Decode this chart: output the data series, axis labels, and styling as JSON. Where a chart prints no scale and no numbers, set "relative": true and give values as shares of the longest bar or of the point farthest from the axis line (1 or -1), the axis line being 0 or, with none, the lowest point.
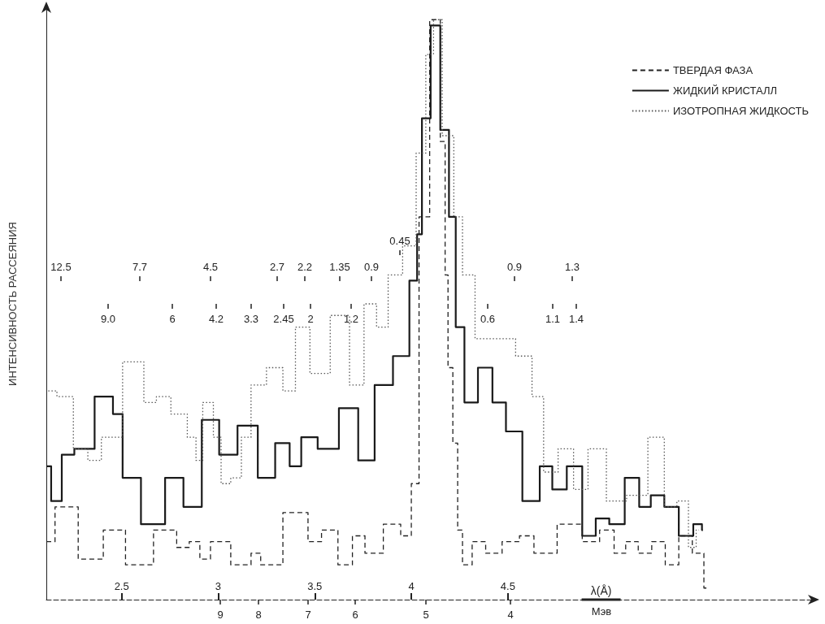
{
  "chart_data": {
    "type": "step",
    "relative": true,
    "ylabel": "ИНТЕНСИВНОСТЬ РАССЕЯНИЯ",
    "xlabel": "λ(Å)",
    "xlim": [
      2.11,
      6.1
    ],
    "xticks": [
      2.5,
      3,
      3.5,
      4,
      4.5
    ],
    "legend": "top right",
    "grid": false,
    "marker": "none",
    "series": [
      {
        "name": "ТВЕРДАЯ ФАЗА",
        "color": "#222222",
        "line_style": "dashed",
        "x": [
          2.11,
          2.2,
          2.35,
          2.46,
          2.58,
          2.75,
          2.82,
          2.88,
          2.93,
          2.99,
          3.14,
          3.2,
          3.24,
          3.43,
          3.5,
          3.57,
          3.67,
          3.72,
          3.8,
          3.91,
          3.98,
          4.02,
          4.06,
          4.13,
          4.17,
          4.18,
          4.2,
          4.23,
          4.25,
          4.28,
          4.35,
          4.42,
          4.52,
          4.6,
          4.67,
          4.84,
          4.93,
          5.02,
          5.08,
          5.14,
          5.21,
          5.28,
          5.35,
          5.42,
          5.49,
          5.54
        ],
        "values": [
          0.1,
          0.16,
          0.07,
          0.12,
          0.06,
          0.12,
          0.09,
          0.1,
          0.07,
          0.1,
          0.06,
          0.08,
          0.06,
          0.15,
          0.1,
          0.12,
          0.06,
          0.11,
          0.08,
          0.13,
          0.11,
          0.2,
          0.66,
          1.0,
          0.79,
          0.56,
          0.4,
          0.27,
          0.12,
          0.06,
          0.1,
          0.08,
          0.1,
          0.11,
          0.08,
          0.13,
          0.1,
          0.12,
          0.08,
          0.1,
          0.08,
          0.1,
          0.06,
          0.11,
          0.08,
          0.02
        ]
      },
      {
        "name": "ЖИДКИЙ КРИСТАЛЛ",
        "color": "#1a1a1a",
        "line_style": "solid",
        "x": [
          2.11,
          2.16,
          2.22,
          2.29,
          2.43,
          2.48,
          2.53,
          2.67,
          2.78,
          2.86,
          2.97,
          3.04,
          3.16,
          3.25,
          3.34,
          3.4,
          3.46,
          3.57,
          3.68,
          3.77,
          3.85,
          3.96,
          4.02,
          4.04,
          4.07,
          4.13,
          4.17,
          4.22,
          4.24,
          4.31,
          4.38,
          4.46,
          4.52,
          4.63,
          4.7,
          4.76,
          4.85,
          4.92,
          4.99,
          5.06,
          5.15,
          5.21,
          5.27,
          5.35,
          5.42,
          5.5,
          5.51
        ],
        "values": [
          0.23,
          0.17,
          0.25,
          0.26,
          0.35,
          0.32,
          0.21,
          0.13,
          0.21,
          0.16,
          0.31,
          0.25,
          0.3,
          0.21,
          0.27,
          0.23,
          0.28,
          0.26,
          0.33,
          0.24,
          0.37,
          0.42,
          0.55,
          0.63,
          0.83,
          0.99,
          0.81,
          0.66,
          0.47,
          0.34,
          0.4,
          0.34,
          0.29,
          0.17,
          0.23,
          0.19,
          0.23,
          0.11,
          0.14,
          0.13,
          0.21,
          0.16,
          0.18,
          0.16,
          0.11,
          0.13,
          0.12
        ]
      },
      {
        "name": "ИЗОТРОПНАЯ ЖИДКОСТЬ",
        "color": "#555555",
        "line_style": "dotted",
        "x": [
          2.12,
          2.21,
          2.29,
          2.36,
          2.43,
          2.58,
          2.65,
          2.71,
          2.8,
          2.88,
          2.89,
          2.95,
          3.0,
          3.03,
          3.1,
          3.14,
          3.2,
          3.3,
          3.37,
          3.43,
          3.52,
          3.64,
          3.72,
          3.79,
          3.85,
          3.91,
          4.0,
          4.05,
          4.1,
          4.13,
          4.19,
          4.25,
          4.28,
          4.38,
          4.49,
          4.59,
          4.66,
          4.71,
          4.81,
          4.87,
          4.96,
          5.06,
          5.17,
          5.28,
          5.34,
          5.41,
          5.46,
          5.49
        ],
        "values": [
          0.36,
          0.35,
          0.26,
          0.24,
          0.28,
          0.41,
          0.34,
          0.35,
          0.32,
          0.28,
          0.24,
          0.34,
          0.28,
          0.2,
          0.21,
          0.28,
          0.37,
          0.4,
          0.36,
          0.47,
          0.39,
          0.49,
          0.37,
          0.51,
          0.47,
          0.56,
          0.61,
          0.77,
          0.94,
          1.0,
          0.8,
          0.66,
          0.56,
          0.45,
          0.45,
          0.42,
          0.35,
          0.22,
          0.26,
          0.19,
          0.26,
          0.17,
          0.18,
          0.28,
          0.16,
          0.17,
          0.09,
          0.12
        ]
      }
    ],
    "annotations": [
      "12.5",
      "7.7",
      "4.5",
      "2.7",
      "2.2",
      "1.35",
      "0.9",
      "0.45",
      "0.9",
      "1.3",
      "9.0",
      "6",
      "4.2",
      "3.3",
      "2.45",
      "2",
      "1.2",
      "0.6",
      "1.1",
      "1.4",
      "9",
      "8",
      "7",
      "6",
      "5",
      "4",
      "Мэв"
    ]
  }
}
